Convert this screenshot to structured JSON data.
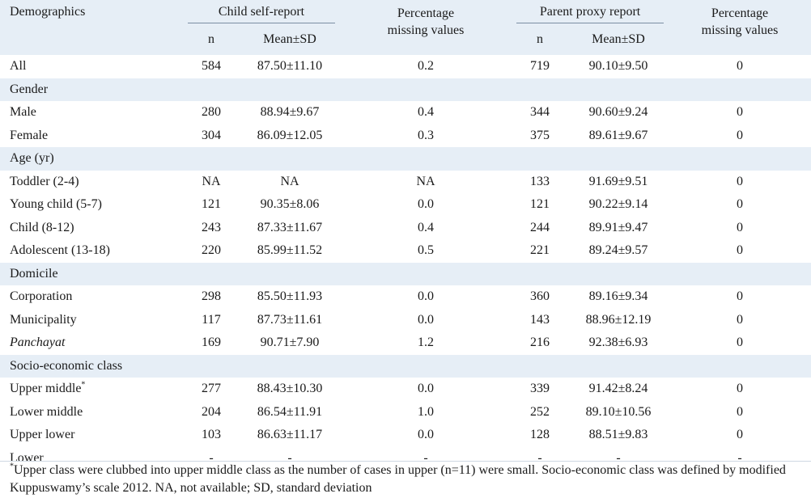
{
  "header": {
    "demographics": "Demographics",
    "child_group": "Child self-report",
    "parent_group": "Parent proxy report",
    "pct_missing_1": "Percentage",
    "pct_missing_2": "missing values",
    "n": "n",
    "mean_sd": "Mean±SD"
  },
  "rows": [
    {
      "type": "data",
      "label": "All",
      "c_n": "584",
      "c_mean": "87.50±11.10",
      "c_pm": "0.2",
      "p_n": "719",
      "p_mean": "90.10±9.50",
      "p_pm": "0"
    },
    {
      "type": "section",
      "label": "Gender"
    },
    {
      "type": "data",
      "label": "Male",
      "c_n": "280",
      "c_mean": "88.94±9.67",
      "c_pm": "0.4",
      "p_n": "344",
      "p_mean": "90.60±9.24",
      "p_pm": "0"
    },
    {
      "type": "data",
      "label": "Female",
      "c_n": "304",
      "c_mean": "86.09±12.05",
      "c_pm": "0.3",
      "p_n": "375",
      "p_mean": "89.61±9.67",
      "p_pm": "0"
    },
    {
      "type": "section",
      "label": "Age (yr)"
    },
    {
      "type": "data",
      "label": "Toddler (2-4)",
      "c_n": "NA",
      "c_mean": "NA",
      "c_pm": "NA",
      "p_n": "133",
      "p_mean": "91.69±9.51",
      "p_pm": "0"
    },
    {
      "type": "data",
      "label": "Young child (5-7)",
      "c_n": "121",
      "c_mean": "90.35±8.06",
      "c_pm": "0.0",
      "p_n": "121",
      "p_mean": "90.22±9.14",
      "p_pm": "0"
    },
    {
      "type": "data",
      "label": "Child (8-12)",
      "c_n": "243",
      "c_mean": "87.33±11.67",
      "c_pm": "0.4",
      "p_n": "244",
      "p_mean": "89.91±9.47",
      "p_pm": "0"
    },
    {
      "type": "data",
      "label": "Adolescent (13-18)",
      "c_n": "220",
      "c_mean": "85.99±11.52",
      "c_pm": "0.5",
      "p_n": "221",
      "p_mean": "89.24±9.57",
      "p_pm": "0"
    },
    {
      "type": "section",
      "label": "Domicile"
    },
    {
      "type": "data",
      "label": "Corporation",
      "c_n": "298",
      "c_mean": "85.50±11.93",
      "c_pm": "0.0",
      "p_n": "360",
      "p_mean": "89.16±9.34",
      "p_pm": "0"
    },
    {
      "type": "data",
      "label": "Municipality",
      "c_n": "117",
      "c_mean": "87.73±11.61",
      "c_pm": "0.0",
      "p_n": "143",
      "p_mean": "88.96±12.19",
      "p_pm": "0"
    },
    {
      "type": "data",
      "label": "Panchayat",
      "italic": true,
      "c_n": "169",
      "c_mean": "90.71±7.90",
      "c_pm": "1.2",
      "p_n": "216",
      "p_mean": "92.38±6.93",
      "p_pm": "0"
    },
    {
      "type": "section",
      "label": "Socio-economic class"
    },
    {
      "type": "data",
      "label": "Upper middle",
      "sup": "*",
      "c_n": "277",
      "c_mean": "88.43±10.30",
      "c_pm": "0.0",
      "p_n": "339",
      "p_mean": "91.42±8.24",
      "p_pm": "0"
    },
    {
      "type": "data",
      "label": "Lower middle",
      "c_n": "204",
      "c_mean": "86.54±11.91",
      "c_pm": "1.0",
      "p_n": "252",
      "p_mean": "89.10±10.56",
      "p_pm": "0"
    },
    {
      "type": "data",
      "label": "Upper lower",
      "c_n": "103",
      "c_mean": "86.63±11.17",
      "c_pm": "0.0",
      "p_n": "128",
      "p_mean": "88.51±9.83",
      "p_pm": "0"
    },
    {
      "type": "data",
      "label": "Lower",
      "c_n": "-",
      "c_mean": "-",
      "c_pm": "-",
      "p_n": "-",
      "p_mean": "-",
      "p_pm": "-"
    }
  ],
  "footnote": {
    "mark": "*",
    "text": "Upper class were clubbed into upper middle class as the number of cases in upper (n=11) were small. Socio-economic class was defined by modified Kuppuswamy’s scale 2012. NA, not available; SD, standard deviation"
  }
}
